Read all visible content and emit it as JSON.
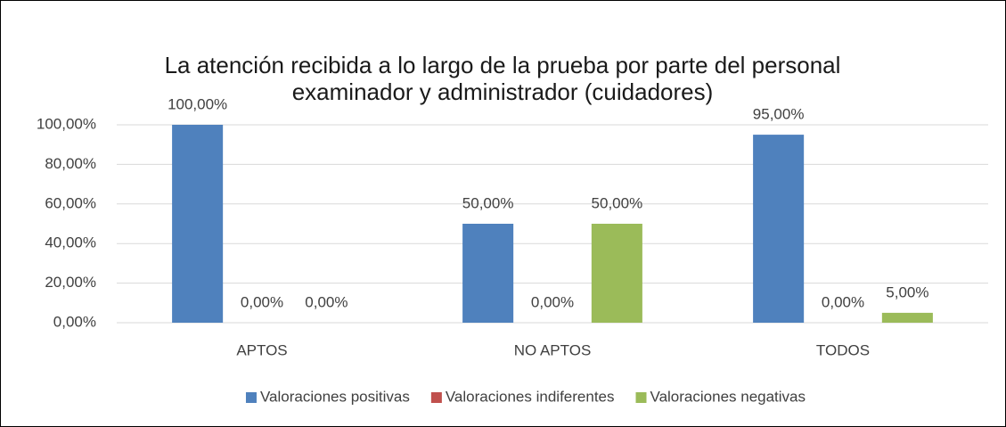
{
  "chart_data": {
    "type": "bar",
    "title": "La atención recibida a lo largo de la prueba por parte del personal examinador y administrador (cuidadores)",
    "categories": [
      "APTOS",
      "NO APTOS",
      "TODOS"
    ],
    "series": [
      {
        "name": "Valoraciones positivas",
        "color": "#4f81bd",
        "values": [
          100,
          50,
          95
        ],
        "value_labels": [
          "100,00%",
          "50,00%",
          "95,00%"
        ]
      },
      {
        "name": "Valoraciones indiferentes",
        "color": "#c0504d",
        "values": [
          0,
          0,
          0
        ],
        "value_labels": [
          "0,00%",
          "0,00%",
          "0,00%"
        ]
      },
      {
        "name": "Valoraciones negativas",
        "color": "#9bbb59",
        "values": [
          0,
          50,
          5
        ],
        "value_labels": [
          "0,00%",
          "50,00%",
          "5,00%"
        ]
      }
    ],
    "ylim": [
      0,
      100
    ],
    "yticks": [
      {
        "value": 0,
        "label": "0,00%"
      },
      {
        "value": 20,
        "label": "20,00%"
      },
      {
        "value": 40,
        "label": "40,00%"
      },
      {
        "value": 60,
        "label": "60,00%"
      },
      {
        "value": 80,
        "label": "80,00%"
      },
      {
        "value": 100,
        "label": "100,00%"
      }
    ],
    "grid": true,
    "legend": "bottom"
  }
}
